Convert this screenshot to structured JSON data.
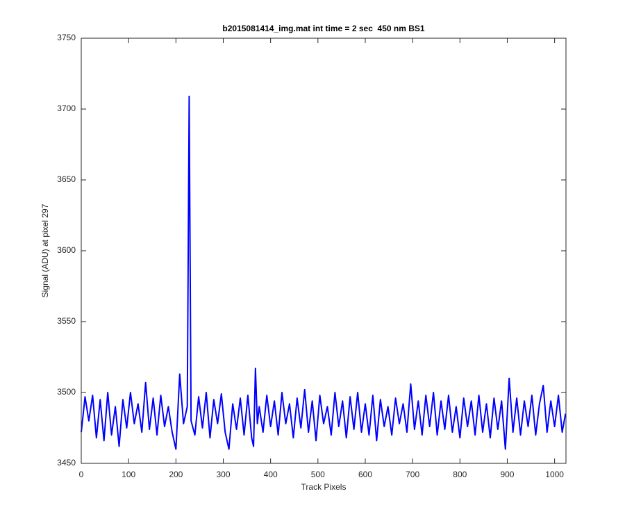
{
  "chart_data": {
    "type": "line",
    "title": "b2015081414_img.mat int time = 2 sec  450 nm BS1",
    "xlabel": "Track Pixels",
    "ylabel": "Signal (ADU) at pixel 297",
    "x": [
      0,
      8,
      16,
      24,
      32,
      40,
      48,
      56,
      64,
      72,
      80,
      88,
      96,
      104,
      112,
      120,
      128,
      136,
      144,
      152,
      160,
      168,
      176,
      184,
      192,
      200,
      208,
      216,
      224,
      228,
      232,
      240,
      248,
      256,
      264,
      272,
      280,
      288,
      296,
      304,
      312,
      320,
      328,
      336,
      344,
      352,
      360,
      364,
      368,
      372,
      376,
      384,
      392,
      400,
      408,
      416,
      424,
      432,
      440,
      448,
      456,
      464,
      472,
      480,
      488,
      496,
      504,
      512,
      520,
      528,
      536,
      544,
      552,
      560,
      568,
      576,
      584,
      592,
      600,
      608,
      616,
      624,
      632,
      640,
      648,
      656,
      664,
      672,
      680,
      688,
      696,
      704,
      712,
      720,
      728,
      736,
      744,
      752,
      760,
      768,
      776,
      784,
      792,
      800,
      808,
      816,
      824,
      832,
      840,
      848,
      856,
      864,
      872,
      880,
      888,
      896,
      904,
      912,
      920,
      928,
      936,
      944,
      952,
      960,
      968,
      976,
      984,
      992,
      1000,
      1008,
      1016,
      1023
    ],
    "series": [
      {
        "color": "#0000ff",
        "values": [
          3472,
          3497,
          3480,
          3498,
          3468,
          3495,
          3466,
          3500,
          3470,
          3490,
          3462,
          3495,
          3475,
          3500,
          3478,
          3492,
          3472,
          3507,
          3474,
          3496,
          3470,
          3498,
          3476,
          3490,
          3472,
          3460,
          3513,
          3478,
          3490,
          3709,
          3480,
          3470,
          3497,
          3475,
          3500,
          3468,
          3495,
          3478,
          3499,
          3472,
          3460,
          3492,
          3474,
          3496,
          3470,
          3498,
          3468,
          3462,
          3517,
          3478,
          3490,
          3472,
          3498,
          3476,
          3494,
          3470,
          3500,
          3478,
          3492,
          3468,
          3496,
          3475,
          3502,
          3472,
          3494,
          3466,
          3498,
          3478,
          3490,
          3470,
          3500,
          3476,
          3494,
          3468,
          3497,
          3474,
          3500,
          3472,
          3492,
          3470,
          3498,
          3466,
          3495,
          3476,
          3490,
          3470,
          3496,
          3478,
          3492,
          3472,
          3506,
          3474,
          3494,
          3470,
          3498,
          3476,
          3500,
          3470,
          3494,
          3474,
          3498,
          3472,
          3490,
          3468,
          3496,
          3476,
          3494,
          3470,
          3498,
          3472,
          3492,
          3468,
          3496,
          3474,
          3494,
          3460,
          3510,
          3472,
          3496,
          3470,
          3494,
          3476,
          3498,
          3470,
          3492,
          3505,
          3472,
          3494,
          3476,
          3498,
          3472,
          3485
        ]
      }
    ],
    "xlim": [
      0,
      1024
    ],
    "xticks": [
      0,
      100,
      200,
      300,
      400,
      500,
      600,
      700,
      800,
      900,
      1000
    ],
    "ylim": [
      3450,
      3750
    ],
    "yticks": [
      3450,
      3500,
      3550,
      3600,
      3650,
      3700,
      3750
    ],
    "grid": false
  }
}
